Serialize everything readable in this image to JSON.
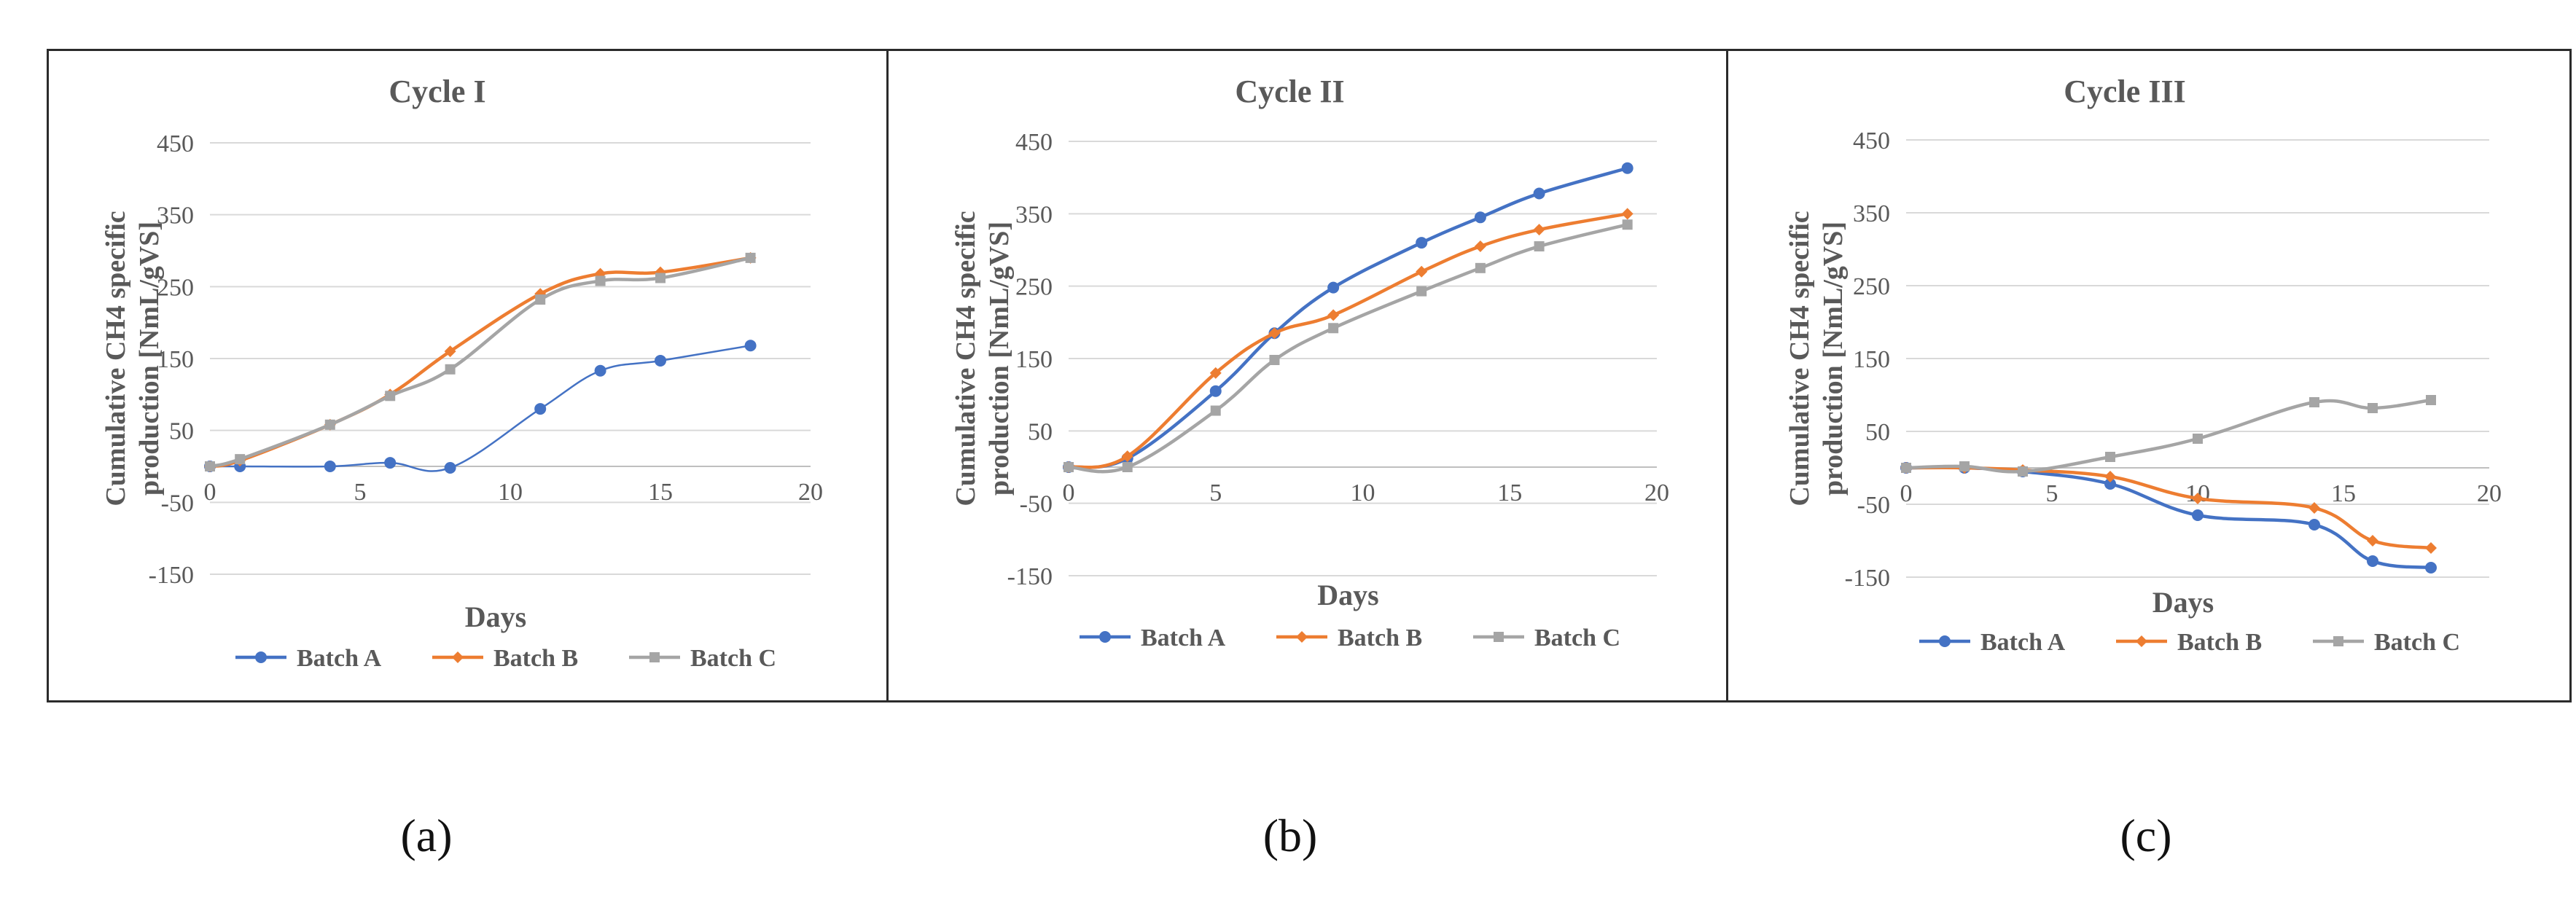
{
  "chart_data": [
    {
      "type": "line",
      "title": "Cycle I",
      "xlabel": "Days",
      "ylabel": "Cumulative CH4 specific production [NmL/gVS]",
      "xlim": [
        0,
        20
      ],
      "ylim": [
        -150,
        450
      ],
      "xticks": [
        "0",
        "5",
        "10",
        "15",
        "20"
      ],
      "yticks": [
        "-150",
        "-50",
        "50",
        "150",
        "250",
        "350",
        "450"
      ],
      "legend": [
        "Batch A",
        "Batch B",
        "Batch C"
      ],
      "series": [
        {
          "name": "Batch A",
          "color": "#4472C4",
          "marker": "circle",
          "x": [
            0,
            1,
            4,
            6,
            8,
            11,
            13,
            15,
            18
          ],
          "y": [
            0,
            0,
            0,
            5,
            -2,
            80,
            133,
            147,
            168
          ]
        },
        {
          "name": "Batch B",
          "color": "#ED7D31",
          "marker": "diamond",
          "x": [
            0,
            1,
            4,
            6,
            8,
            11,
            13,
            15,
            18
          ],
          "y": [
            0,
            8,
            58,
            100,
            160,
            240,
            268,
            270,
            290
          ]
        },
        {
          "name": "Batch C",
          "color": "#A5A5A5",
          "marker": "square",
          "x": [
            0,
            1,
            4,
            6,
            8,
            11,
            13,
            15,
            18
          ],
          "y": [
            0,
            10,
            58,
            98,
            135,
            232,
            258,
            262,
            290
          ]
        }
      ]
    },
    {
      "type": "line",
      "title": "Cycle II",
      "xlabel": "Days",
      "ylabel": "Cumulative CH4 specific production [NmL/gVS]",
      "xlim": [
        0,
        20
      ],
      "ylim": [
        -150,
        450
      ],
      "xticks": [
        "0",
        "5",
        "10",
        "15",
        "20"
      ],
      "yticks": [
        "-150",
        "-50",
        "50",
        "150",
        "250",
        "350",
        "450"
      ],
      "legend": [
        "Batch A",
        "Batch B",
        "Batch C"
      ],
      "series": [
        {
          "name": "Batch A",
          "color": "#4472C4",
          "marker": "circle",
          "x": [
            0,
            2,
            5,
            7,
            9,
            12,
            14,
            16,
            19
          ],
          "y": [
            0,
            12,
            105,
            185,
            248,
            310,
            345,
            378,
            413
          ]
        },
        {
          "name": "Batch B",
          "color": "#ED7D31",
          "marker": "diamond",
          "x": [
            0,
            2,
            5,
            7,
            9,
            12,
            14,
            16,
            19
          ],
          "y": [
            0,
            15,
            130,
            185,
            210,
            270,
            305,
            328,
            350
          ]
        },
        {
          "name": "Batch C",
          "color": "#A5A5A5",
          "marker": "square",
          "x": [
            0,
            2,
            5,
            7,
            9,
            12,
            14,
            16,
            19
          ],
          "y": [
            0,
            0,
            78,
            148,
            192,
            243,
            275,
            305,
            335
          ]
        }
      ]
    },
    {
      "type": "line",
      "title": "Cycle III",
      "xlabel": "Days",
      "ylabel": "Cumulative CH4 specific production [NmL/gVS]",
      "xlim": [
        0,
        20
      ],
      "ylim": [
        -150,
        450
      ],
      "xticks": [
        "0",
        "5",
        "10",
        "15",
        "20"
      ],
      "yticks": [
        "-150",
        "-50",
        "50",
        "150",
        "250",
        "350",
        "450"
      ],
      "legend": [
        "Batch A",
        "Batch B",
        "Batch C"
      ],
      "series": [
        {
          "name": "Batch A",
          "color": "#4472C4",
          "marker": "circle",
          "x": [
            0,
            2,
            4,
            7,
            10,
            14,
            16,
            18
          ],
          "y": [
            0,
            0,
            -5,
            -22,
            -65,
            -78,
            -128,
            -137
          ]
        },
        {
          "name": "Batch B",
          "color": "#ED7D31",
          "marker": "diamond",
          "x": [
            0,
            2,
            4,
            7,
            10,
            14,
            16,
            18
          ],
          "y": [
            0,
            0,
            -3,
            -12,
            -42,
            -55,
            -100,
            -110
          ]
        },
        {
          "name": "Batch C",
          "color": "#A5A5A5",
          "marker": "square",
          "x": [
            0,
            2,
            4,
            7,
            10,
            14,
            16,
            18
          ],
          "y": [
            0,
            2,
            -5,
            15,
            40,
            90,
            82,
            93
          ]
        }
      ]
    }
  ],
  "sublabels": [
    "(a)",
    "(b)",
    "(c)"
  ]
}
